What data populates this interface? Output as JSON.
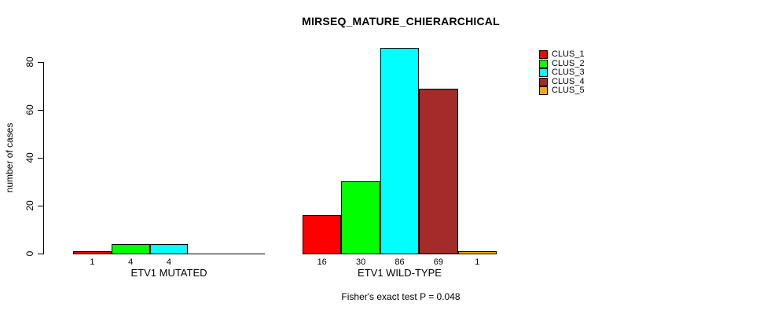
{
  "chart_data": {
    "type": "bar",
    "title": "MIRSEQ_MATURE_CHIERARCHICAL",
    "ylabel": "number of cases",
    "xlabel": "",
    "ylim": [
      0,
      80
    ],
    "yticks": [
      0,
      20,
      40,
      60,
      80
    ],
    "grid": false,
    "legend_position": "top-right",
    "series_names": [
      "CLUS_1",
      "CLUS_2",
      "CLUS_3",
      "CLUS_4",
      "CLUS_5"
    ],
    "series_colors": [
      "#FF0000",
      "#00FF00",
      "#00FFFF",
      "#A52A2A",
      "#FFA500"
    ],
    "groups": [
      {
        "label": "ETV1 MUTATED",
        "values": [
          1,
          4,
          4,
          0,
          0
        ],
        "bar_labels": [
          "1",
          "4",
          "4",
          "",
          ""
        ]
      },
      {
        "label": "ETV1 WILD-TYPE",
        "values": [
          16,
          30,
          86,
          69,
          1
        ],
        "bar_labels": [
          "16",
          "30",
          "86",
          "69",
          "1"
        ]
      }
    ],
    "footnote": "Fisher's exact test P = 0.048"
  },
  "colors": {
    "background": "#FFFFFF",
    "axis": "#000000",
    "text": "#000000"
  }
}
